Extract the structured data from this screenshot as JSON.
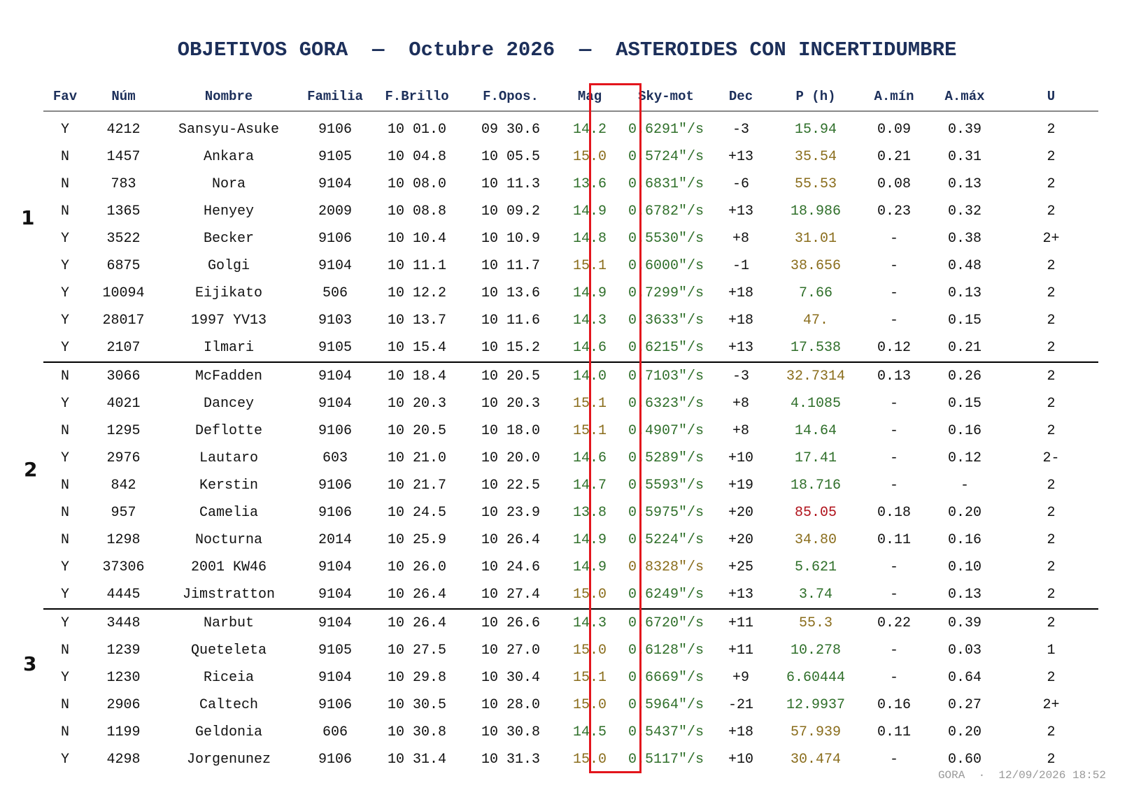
{
  "title": "OBJETIVOS GORA  —  Octubre 2026  —  ASTEROIDES CON INCERTIDUMBRE",
  "columns": [
    "Fav",
    "Núm",
    "Nombre",
    "Familia",
    "F.Brillo",
    "F.Opos.",
    "Mag",
    "Sky-mot",
    "Dec",
    "P (h)",
    "A.mín",
    "A.máx",
    "U"
  ],
  "groups": [
    {
      "label": "1",
      "rows": [
        {
          "fav": "Y",
          "num": "4212",
          "nombre": "Sansyu-Asuke",
          "familia": "9106",
          "fbrillo": "10 01.0",
          "fopos": "09 30.6",
          "mag": "14.2",
          "mag_color": "green",
          "skymot": "0.6291\"/s",
          "sky_color": "green",
          "dec": "-3",
          "p": "15.94",
          "p_color": "green",
          "amin": "0.09",
          "amax": "0.39",
          "u": "2"
        },
        {
          "fav": "N",
          "num": "1457",
          "nombre": "Ankara",
          "familia": "9105",
          "fbrillo": "10 04.8",
          "fopos": "10 05.5",
          "mag": "15.0",
          "mag_color": "gold",
          "skymot": "0.5724\"/s",
          "sky_color": "green",
          "dec": "+13",
          "p": "35.54",
          "p_color": "gold",
          "amin": "0.21",
          "amax": "0.31",
          "u": "2"
        },
        {
          "fav": "N",
          "num": "783",
          "nombre": "Nora",
          "familia": "9104",
          "fbrillo": "10 08.0",
          "fopos": "10 11.3",
          "mag": "13.6",
          "mag_color": "green",
          "skymot": "0.6831\"/s",
          "sky_color": "green",
          "dec": "-6",
          "p": "55.53",
          "p_color": "gold",
          "amin": "0.08",
          "amax": "0.13",
          "u": "2"
        },
        {
          "fav": "N",
          "num": "1365",
          "nombre": "Henyey",
          "familia": "2009",
          "fbrillo": "10 08.8",
          "fopos": "10 09.2",
          "mag": "14.9",
          "mag_color": "green",
          "skymot": "0.6782\"/s",
          "sky_color": "green",
          "dec": "+13",
          "p": "18.986",
          "p_color": "green",
          "amin": "0.23",
          "amax": "0.32",
          "u": "2"
        },
        {
          "fav": "Y",
          "num": "3522",
          "nombre": "Becker",
          "familia": "9106",
          "fbrillo": "10 10.4",
          "fopos": "10 10.9",
          "mag": "14.8",
          "mag_color": "green",
          "skymot": "0.5530\"/s",
          "sky_color": "green",
          "dec": "+8",
          "p": "31.01",
          "p_color": "gold",
          "amin": "-",
          "amax": "0.38",
          "u": "2+"
        },
        {
          "fav": "Y",
          "num": "6875",
          "nombre": "Golgi",
          "familia": "9104",
          "fbrillo": "10 11.1",
          "fopos": "10 11.7",
          "mag": "15.1",
          "mag_color": "gold",
          "skymot": "0.6000\"/s",
          "sky_color": "green",
          "dec": "-1",
          "p": "38.656",
          "p_color": "gold",
          "amin": "-",
          "amax": "0.48",
          "u": "2"
        },
        {
          "fav": "Y",
          "num": "10094",
          "nombre": "Eijikato",
          "familia": "506",
          "fbrillo": "10 12.2",
          "fopos": "10 13.6",
          "mag": "14.9",
          "mag_color": "green",
          "skymot": "0.7299\"/s",
          "sky_color": "green",
          "dec": "+18",
          "p": "7.66",
          "p_color": "green",
          "amin": "-",
          "amax": "0.13",
          "u": "2"
        },
        {
          "fav": "Y",
          "num": "28017",
          "nombre": "1997 YV13",
          "familia": "9103",
          "fbrillo": "10 13.7",
          "fopos": "10 11.6",
          "mag": "14.3",
          "mag_color": "green",
          "skymot": "0.3633\"/s",
          "sky_color": "green",
          "dec": "+18",
          "p": "47.",
          "p_color": "gold",
          "amin": "-",
          "amax": "0.15",
          "u": "2"
        },
        {
          "fav": "Y",
          "num": "2107",
          "nombre": "Ilmari",
          "familia": "9105",
          "fbrillo": "10 15.4",
          "fopos": "10 15.2",
          "mag": "14.6",
          "mag_color": "green",
          "skymot": "0.6215\"/s",
          "sky_color": "green",
          "dec": "+13",
          "p": "17.538",
          "p_color": "green",
          "amin": "0.12",
          "amax": "0.21",
          "u": "2"
        }
      ]
    },
    {
      "label": "2",
      "rows": [
        {
          "fav": "N",
          "num": "3066",
          "nombre": "McFadden",
          "familia": "9104",
          "fbrillo": "10 18.4",
          "fopos": "10 20.5",
          "mag": "14.0",
          "mag_color": "green",
          "skymot": "0.7103\"/s",
          "sky_color": "green",
          "dec": "-3",
          "p": "32.7314",
          "p_color": "gold",
          "amin": "0.13",
          "amax": "0.26",
          "u": "2"
        },
        {
          "fav": "Y",
          "num": "4021",
          "nombre": "Dancey",
          "familia": "9104",
          "fbrillo": "10 20.3",
          "fopos": "10 20.3",
          "mag": "15.1",
          "mag_color": "gold",
          "skymot": "0.6323\"/s",
          "sky_color": "green",
          "dec": "+8",
          "p": "4.1085",
          "p_color": "green",
          "amin": "-",
          "amax": "0.15",
          "u": "2"
        },
        {
          "fav": "N",
          "num": "1295",
          "nombre": "Deflotte",
          "familia": "9106",
          "fbrillo": "10 20.5",
          "fopos": "10 18.0",
          "mag": "15.1",
          "mag_color": "gold",
          "skymot": "0.4907\"/s",
          "sky_color": "green",
          "dec": "+8",
          "p": "14.64",
          "p_color": "green",
          "amin": "-",
          "amax": "0.16",
          "u": "2"
        },
        {
          "fav": "Y",
          "num": "2976",
          "nombre": "Lautaro",
          "familia": "603",
          "fbrillo": "10 21.0",
          "fopos": "10 20.0",
          "mag": "14.6",
          "mag_color": "green",
          "skymot": "0.5289\"/s",
          "sky_color": "green",
          "dec": "+10",
          "p": "17.41",
          "p_color": "green",
          "amin": "-",
          "amax": "0.12",
          "u": "2-"
        },
        {
          "fav": "N",
          "num": "842",
          "nombre": "Kerstin",
          "familia": "9106",
          "fbrillo": "10 21.7",
          "fopos": "10 22.5",
          "mag": "14.7",
          "mag_color": "green",
          "skymot": "0.5593\"/s",
          "sky_color": "green",
          "dec": "+19",
          "p": "18.716",
          "p_color": "green",
          "amin": "-",
          "amax": "-",
          "u": "2"
        },
        {
          "fav": "N",
          "num": "957",
          "nombre": "Camelia",
          "familia": "9106",
          "fbrillo": "10 24.5",
          "fopos": "10 23.9",
          "mag": "13.8",
          "mag_color": "green",
          "skymot": "0.5975\"/s",
          "sky_color": "green",
          "dec": "+20",
          "p": "85.05",
          "p_color": "red",
          "amin": "0.18",
          "amax": "0.20",
          "u": "2"
        },
        {
          "fav": "N",
          "num": "1298",
          "nombre": "Nocturna",
          "familia": "2014",
          "fbrillo": "10 25.9",
          "fopos": "10 26.4",
          "mag": "14.9",
          "mag_color": "green",
          "skymot": "0.5224\"/s",
          "sky_color": "green",
          "dec": "+20",
          "p": "34.80",
          "p_color": "gold",
          "amin": "0.11",
          "amax": "0.16",
          "u": "2"
        },
        {
          "fav": "Y",
          "num": "37306",
          "nombre": "2001 KW46",
          "familia": "9104",
          "fbrillo": "10 26.0",
          "fopos": "10 24.6",
          "mag": "14.9",
          "mag_color": "green",
          "skymot": "0.8328\"/s",
          "sky_color": "gold",
          "dec": "+25",
          "p": "5.621",
          "p_color": "green",
          "amin": "-",
          "amax": "0.10",
          "u": "2"
        },
        {
          "fav": "Y",
          "num": "4445",
          "nombre": "Jimstratton",
          "familia": "9104",
          "fbrillo": "10 26.4",
          "fopos": "10 27.4",
          "mag": "15.0",
          "mag_color": "gold",
          "skymot": "0.6249\"/s",
          "sky_color": "green",
          "dec": "+13",
          "p": "3.74",
          "p_color": "green",
          "amin": "-",
          "amax": "0.13",
          "u": "2"
        }
      ]
    },
    {
      "label": "3",
      "rows": [
        {
          "fav": "Y",
          "num": "3448",
          "nombre": "Narbut",
          "familia": "9104",
          "fbrillo": "10 26.4",
          "fopos": "10 26.6",
          "mag": "14.3",
          "mag_color": "green",
          "skymot": "0.6720\"/s",
          "sky_color": "green",
          "dec": "+11",
          "p": "55.3",
          "p_color": "gold",
          "amin": "0.22",
          "amax": "0.39",
          "u": "2"
        },
        {
          "fav": "N",
          "num": "1239",
          "nombre": "Queteleta",
          "familia": "9105",
          "fbrillo": "10 27.5",
          "fopos": "10 27.0",
          "mag": "15.0",
          "mag_color": "gold",
          "skymot": "0.6128\"/s",
          "sky_color": "green",
          "dec": "+11",
          "p": "10.278",
          "p_color": "green",
          "amin": "-",
          "amax": "0.03",
          "u": "1"
        },
        {
          "fav": "Y",
          "num": "1230",
          "nombre": "Riceia",
          "familia": "9104",
          "fbrillo": "10 29.8",
          "fopos": "10 30.4",
          "mag": "15.1",
          "mag_color": "gold",
          "skymot": "0.6669\"/s",
          "sky_color": "green",
          "dec": "+9",
          "p": "6.60444",
          "p_color": "green",
          "amin": "-",
          "amax": "0.64",
          "u": "2"
        },
        {
          "fav": "N",
          "num": "2906",
          "nombre": "Caltech",
          "familia": "9106",
          "fbrillo": "10 30.5",
          "fopos": "10 28.0",
          "mag": "15.0",
          "mag_color": "gold",
          "skymot": "0.5964\"/s",
          "sky_color": "green",
          "dec": "-21",
          "p": "12.9937",
          "p_color": "green",
          "amin": "0.16",
          "amax": "0.27",
          "u": "2+"
        },
        {
          "fav": "N",
          "num": "1199",
          "nombre": "Geldonia",
          "familia": "606",
          "fbrillo": "10 30.8",
          "fopos": "10 30.8",
          "mag": "14.5",
          "mag_color": "green",
          "skymot": "0.5437\"/s",
          "sky_color": "green",
          "dec": "+18",
          "p": "57.939",
          "p_color": "gold",
          "amin": "0.11",
          "amax": "0.20",
          "u": "2"
        },
        {
          "fav": "Y",
          "num": "4298",
          "nombre": "Jorgenunez",
          "familia": "9106",
          "fbrillo": "10 31.4",
          "fopos": "10 31.3",
          "mag": "15.0",
          "mag_color": "gold",
          "skymot": "0.5117\"/s",
          "sky_color": "green",
          "dec": "+10",
          "p": "30.474",
          "p_color": "gold",
          "amin": "-",
          "amax": "0.60",
          "u": "2"
        }
      ]
    }
  ],
  "footer": "GORA  ·  12/09/2026 18:52",
  "colors": {
    "title": "#1c2f5a",
    "green": "#2f6f2a",
    "gold": "#8a6d1c",
    "red": "#b0121b",
    "highlight_box": "#e3151c"
  }
}
